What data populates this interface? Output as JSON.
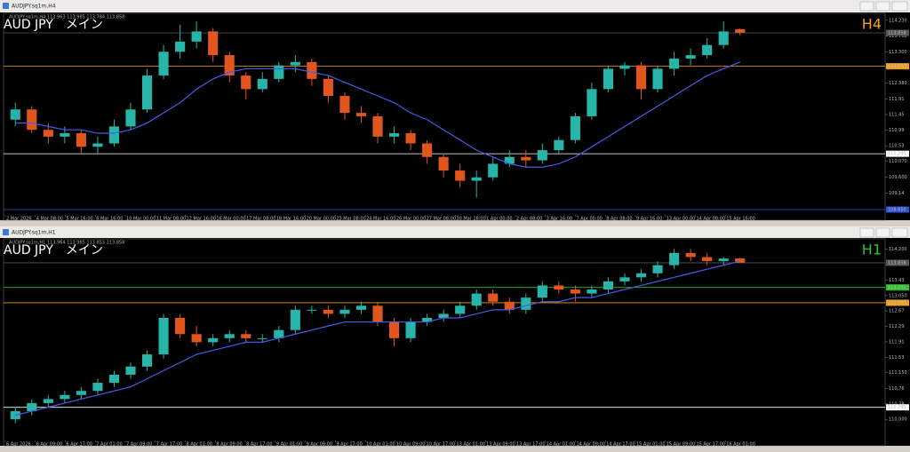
{
  "chart_data": [
    {
      "type": "candlestick",
      "window_title": "AUDJPY.sq1m,H4",
      "info": "AUDJPY.sq1m,H4 113.963 113.985 113.784 113.858",
      "symbol": "AUD JPY　メイン",
      "timeframe": "H4",
      "timeframe_color": "#f0a020",
      "up_color": "#26b5a8",
      "down_color": "#e0561e",
      "ylim": [
        108.65,
        114.46
      ],
      "yticks": [
        {
          "value": 114.23,
          "label": "114.230"
        },
        {
          "value": 113.76,
          "label": "113.760"
        },
        {
          "value": 113.3,
          "label": "113.300"
        },
        {
          "value": 112.84,
          "label": "112.840"
        },
        {
          "value": 112.38,
          "label": "112.380"
        },
        111.91,
        111.45,
        110.99,
        110.53,
        {
          "value": 110.07,
          "label": "110.070"
        },
        {
          "value": 109.6,
          "label": "109.600"
        },
        109.14
      ],
      "levels": [
        {
          "value": 113.858,
          "color": "#555555"
        },
        {
          "value": 112.873,
          "color": "#f0a020"
        },
        {
          "value": 110.295,
          "color": "#ffffff"
        },
        {
          "value": 108.65,
          "label": "108.650",
          "color": "#3050d0"
        }
      ],
      "x_labels": [
        "2 Mar 2026",
        "4 Mar 08:00",
        "5 Mar 16:00",
        "6 Mar 16:00",
        "10 Mar 00:00",
        "11 Mar 08:00",
        "12 Mar 16:00",
        "16 Mar 00:00",
        "17 Mar 08:00",
        "18 Mar 16:00",
        "20 Mar 00:00",
        "23 Mar 08:00",
        "24 Mar 16:00",
        "26 Mar 00:00",
        "27 Mar 08:00",
        "30 Mar 16:00",
        "1 Apr 00:00",
        "2 Apr 08:00",
        "3 Apr 16:00",
        "7 Apr 00:00",
        "8 Apr 08:00",
        "9 Apr 16:00",
        "13 Apr 00:00",
        "14 Apr 08:00",
        "15 Apr 16:00"
      ],
      "open": [
        111.3,
        111.6,
        111.0,
        110.8,
        110.9,
        110.5,
        110.6,
        111.1,
        111.6,
        112.6,
        113.3,
        113.6,
        113.9,
        113.2,
        112.6,
        112.2,
        112.5,
        112.9,
        113.0,
        112.5,
        112.0,
        111.5,
        111.4,
        110.8,
        110.9,
        110.6,
        110.2,
        109.8,
        109.5,
        109.6,
        110.0,
        110.2,
        110.1,
        110.4,
        110.7,
        111.4,
        112.2,
        112.8,
        112.9,
        112.2,
        112.8,
        113.1,
        113.2,
        113.5,
        113.963
      ],
      "high": [
        111.8,
        111.7,
        111.2,
        111.1,
        111.0,
        110.8,
        111.3,
        111.8,
        112.8,
        113.5,
        114.1,
        114.2,
        114.0,
        113.3,
        112.7,
        112.7,
        113.0,
        113.2,
        113.1,
        112.6,
        112.1,
        111.7,
        111.5,
        111.1,
        111.0,
        110.7,
        110.3,
        110.0,
        109.8,
        110.2,
        110.4,
        110.4,
        110.6,
        110.8,
        111.5,
        112.4,
        112.9,
        113.0,
        113.0,
        112.9,
        113.3,
        113.4,
        113.7,
        114.2,
        113.985
      ],
      "low": [
        111.1,
        110.9,
        110.6,
        110.6,
        110.3,
        110.3,
        110.5,
        111.0,
        111.5,
        112.5,
        113.1,
        113.4,
        113.0,
        112.4,
        111.9,
        112.1,
        112.4,
        112.7,
        112.3,
        111.8,
        111.3,
        111.2,
        110.6,
        110.6,
        110.4,
        110.0,
        109.6,
        109.3,
        109.0,
        109.5,
        109.9,
        109.9,
        110.0,
        110.3,
        110.6,
        111.3,
        112.1,
        112.6,
        111.9,
        112.1,
        112.6,
        112.9,
        113.1,
        113.4,
        113.784
      ],
      "close": [
        111.6,
        111.0,
        110.8,
        110.9,
        110.5,
        110.6,
        111.1,
        111.6,
        112.6,
        113.3,
        113.6,
        113.9,
        113.2,
        112.6,
        112.2,
        112.5,
        112.9,
        113.0,
        112.5,
        112.0,
        111.5,
        111.4,
        110.8,
        110.9,
        110.6,
        110.2,
        109.8,
        109.5,
        109.6,
        110.0,
        110.2,
        110.1,
        110.4,
        110.7,
        111.4,
        112.2,
        112.8,
        112.9,
        112.2,
        112.8,
        113.1,
        113.2,
        113.5,
        113.9,
        113.858
      ],
      "ma": {
        "color": "#4a5ae8",
        "values": [
          111.2,
          111.2,
          111.1,
          111.0,
          111.0,
          110.9,
          110.9,
          111.0,
          111.2,
          111.5,
          111.8,
          112.2,
          112.5,
          112.7,
          112.8,
          112.8,
          112.8,
          112.8,
          112.7,
          112.6,
          112.4,
          112.2,
          112.0,
          111.8,
          111.5,
          111.3,
          111.0,
          110.7,
          110.4,
          110.2,
          110.0,
          109.9,
          109.9,
          110.0,
          110.2,
          110.5,
          110.8,
          111.1,
          111.4,
          111.7,
          112.0,
          112.3,
          112.6,
          112.8,
          113.0
        ]
      }
    },
    {
      "type": "candlestick",
      "window_title": "AUDJPY.sq1m,H1",
      "info": "AUDJPY.sq1m,H1 113.964 113.985 113.853 113.858",
      "symbol": "AUD JPY　メイン",
      "timeframe": "H1",
      "timeframe_color": "#30c030",
      "up_color": "#26b5a8",
      "down_color": "#e0561e",
      "ylim": [
        109.61,
        114.47
      ],
      "yticks": [
        {
          "value": 114.2,
          "label": "114.200"
        },
        113.81,
        113.43,
        {
          "value": 113.05,
          "label": "113.050"
        },
        112.67,
        112.29,
        111.91,
        111.53,
        {
          "value": 111.15,
          "label": "111.150"
        },
        110.76,
        110.38,
        {
          "value": 110.0,
          "label": "110.000"
        }
      ],
      "levels": [
        {
          "value": 113.858,
          "color": "#555555"
        },
        {
          "value": 113.251,
          "color": "#30c030"
        },
        {
          "value": 112.873,
          "color": "#f0a020"
        },
        {
          "value": 110.295,
          "color": "#ffffff"
        }
      ],
      "x_labels": [
        "6 Apr 2026",
        "6 Apr 09:00",
        "6 Apr 17:00",
        "7 Apr 01:00",
        "7 Apr 09:00",
        "7 Apr 17:00",
        "8 Apr 01:00",
        "8 Apr 09:00",
        "8 Apr 17:00",
        "9 Apr 01:00",
        "9 Apr 09:00",
        "9 Apr 17:00",
        "10 Apr 01:00",
        "10 Apr 09:00",
        "10 Apr 17:00",
        "13 Apr 01:00",
        "13 Apr 09:00",
        "13 Apr 17:00",
        "14 Apr 01:00",
        "14 Apr 09:00",
        "14 Apr 17:00",
        "15 Apr 01:00",
        "15 Apr 09:00",
        "15 Apr 17:00",
        "16 Apr 01:00"
      ],
      "open": [
        110.0,
        110.2,
        110.4,
        110.5,
        110.6,
        110.7,
        110.9,
        111.1,
        111.3,
        111.6,
        112.5,
        112.1,
        111.9,
        112.0,
        112.1,
        112.0,
        112.0,
        112.2,
        112.7,
        112.7,
        112.6,
        112.7,
        112.8,
        112.4,
        112.0,
        112.4,
        112.5,
        112.6,
        112.8,
        113.1,
        112.9,
        112.7,
        113.0,
        113.3,
        113.2,
        113.1,
        113.2,
        113.4,
        113.5,
        113.6,
        113.8,
        114.1,
        114.0,
        113.9,
        113.964
      ],
      "high": [
        110.3,
        110.5,
        110.6,
        110.7,
        110.8,
        111.0,
        111.2,
        111.4,
        111.7,
        112.6,
        112.6,
        112.3,
        112.1,
        112.2,
        112.2,
        112.1,
        112.3,
        112.8,
        112.8,
        112.8,
        112.8,
        112.9,
        112.9,
        112.5,
        112.5,
        112.6,
        112.7,
        112.9,
        113.2,
        113.2,
        113.0,
        113.1,
        113.4,
        113.4,
        113.3,
        113.3,
        113.5,
        113.6,
        113.7,
        113.9,
        114.2,
        114.2,
        114.1,
        114.0,
        113.985
      ],
      "low": [
        109.9,
        110.1,
        110.3,
        110.4,
        110.5,
        110.6,
        110.8,
        111.0,
        111.2,
        111.5,
        112.0,
        111.8,
        111.8,
        111.9,
        111.9,
        111.9,
        111.9,
        112.1,
        112.6,
        112.5,
        112.5,
        112.6,
        112.3,
        111.8,
        111.9,
        112.3,
        112.4,
        112.5,
        112.7,
        112.8,
        112.6,
        112.6,
        112.9,
        113.1,
        112.9,
        113.0,
        113.1,
        113.3,
        113.4,
        113.5,
        113.7,
        113.9,
        113.8,
        113.8,
        113.853
      ],
      "close": [
        110.2,
        110.4,
        110.5,
        110.6,
        110.7,
        110.9,
        111.1,
        111.3,
        111.6,
        112.5,
        112.1,
        111.9,
        112.0,
        112.1,
        112.0,
        112.0,
        112.2,
        112.7,
        112.7,
        112.6,
        112.7,
        112.8,
        112.4,
        112.0,
        112.4,
        112.5,
        112.6,
        112.8,
        113.1,
        112.9,
        112.7,
        113.0,
        113.3,
        113.2,
        113.1,
        113.2,
        113.4,
        113.5,
        113.6,
        113.8,
        114.1,
        114.0,
        113.9,
        113.964,
        113.858
      ],
      "ma": {
        "color": "#4a5ae8",
        "values": [
          110.1,
          110.2,
          110.3,
          110.4,
          110.5,
          110.6,
          110.7,
          110.8,
          111.0,
          111.2,
          111.4,
          111.6,
          111.7,
          111.8,
          111.9,
          111.9,
          112.0,
          112.1,
          112.2,
          112.3,
          112.4,
          112.4,
          112.4,
          112.4,
          112.4,
          112.4,
          112.5,
          112.5,
          112.6,
          112.7,
          112.7,
          112.8,
          112.9,
          112.9,
          113.0,
          113.0,
          113.1,
          113.2,
          113.3,
          113.4,
          113.5,
          113.6,
          113.7,
          113.8,
          113.9
        ]
      }
    }
  ]
}
